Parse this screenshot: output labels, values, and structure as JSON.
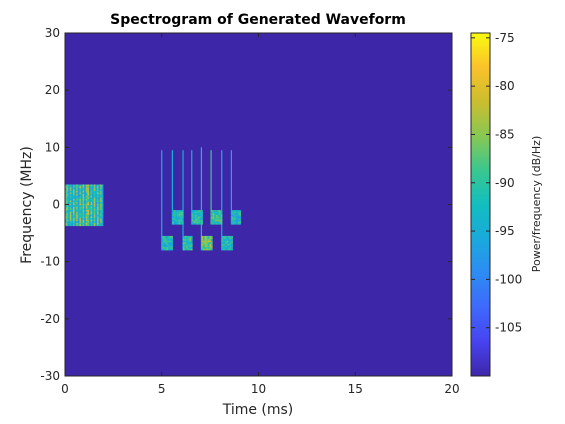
{
  "chart_data": {
    "type": "heatmap",
    "title": "Spectrogram of Generated Waveform",
    "xlabel": "Time (ms)",
    "ylabel": "Frequency (MHz)",
    "xlim": [
      0,
      20
    ],
    "ylim": [
      -30,
      30
    ],
    "xticks": [
      0,
      5,
      10,
      15,
      20
    ],
    "yticks": [
      -30,
      -20,
      -10,
      0,
      10,
      20,
      30
    ],
    "colorbar": {
      "label": "Power/frequency (dB/Hz)",
      "clim": [
        -110,
        -74.5
      ],
      "ticks": [
        -75,
        -80,
        -85,
        -90,
        -95,
        -100,
        -105
      ]
    },
    "background_level": -110,
    "bursts": [
      {
        "t": [
          0.0,
          1.95
        ],
        "f": [
          -3.5,
          3.5
        ],
        "level": -91,
        "kind": "wideband",
        "stripes": 11
      },
      {
        "t": [
          5.0,
          5.55
        ],
        "f": [
          -8.0,
          -5.5
        ],
        "level": -92,
        "kind": "tone"
      },
      {
        "t": [
          5.55,
          6.1
        ],
        "f": [
          -3.5,
          -1.0
        ],
        "level": -92,
        "kind": "tone"
      },
      {
        "t": [
          6.1,
          6.55
        ],
        "f": [
          -8.0,
          -5.5
        ],
        "level": -90,
        "kind": "tone"
      },
      {
        "t": [
          6.55,
          7.05
        ],
        "f": [
          -3.5,
          -1.0
        ],
        "level": -91,
        "kind": "tone"
      },
      {
        "t": [
          7.05,
          7.55
        ],
        "f": [
          -8.0,
          -5.5
        ],
        "level": -86,
        "kind": "tone"
      },
      {
        "t": [
          7.55,
          8.1
        ],
        "f": [
          -3.5,
          -1.0
        ],
        "level": -90,
        "kind": "tone"
      },
      {
        "t": [
          8.1,
          8.6
        ],
        "f": [
          -8.0,
          -5.5
        ],
        "level": -92,
        "kind": "tone"
      },
      {
        "t": [
          8.6,
          9.05
        ],
        "f": [
          -3.5,
          -1.0
        ],
        "level": -93,
        "kind": "tone"
      }
    ],
    "transients": [
      {
        "t": 5.0,
        "f": [
          -8.0,
          9.5
        ],
        "level": -95
      },
      {
        "t": 5.55,
        "f": [
          -3.5,
          9.5
        ],
        "level": -95
      },
      {
        "t": 6.1,
        "f": [
          -8.0,
          9.5
        ],
        "level": -95
      },
      {
        "t": 6.55,
        "f": [
          -3.5,
          9.5
        ],
        "level": -95
      },
      {
        "t": 7.05,
        "f": [
          -8.0,
          10.0
        ],
        "level": -92
      },
      {
        "t": 7.55,
        "f": [
          -3.5,
          9.5
        ],
        "level": -88
      },
      {
        "t": 8.1,
        "f": [
          -8.0,
          9.5
        ],
        "level": -95
      },
      {
        "t": 8.6,
        "f": [
          -3.5,
          9.5
        ],
        "level": -95
      }
    ]
  }
}
